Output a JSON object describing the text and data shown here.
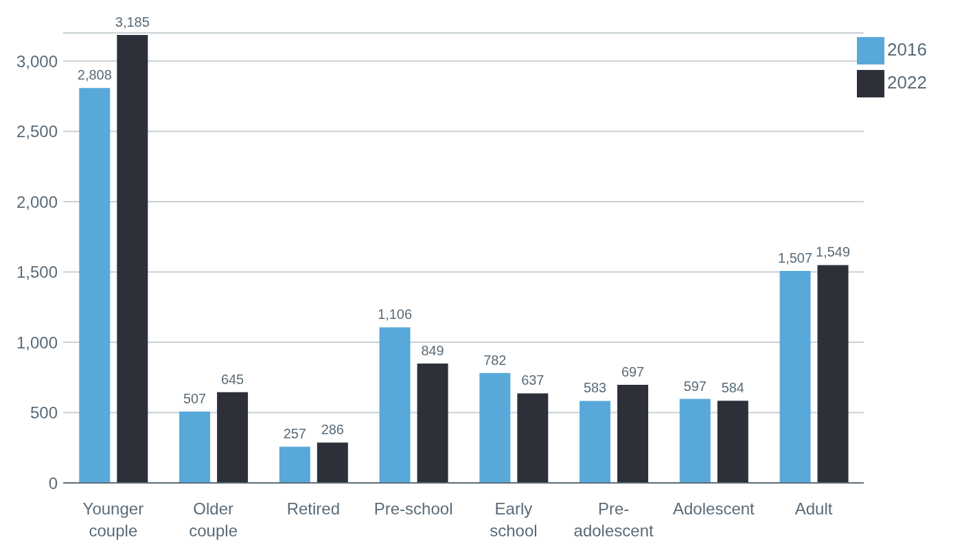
{
  "chart_data": {
    "type": "bar",
    "categories": [
      "Younger couple",
      "Older couple",
      "Retired",
      "Pre-school",
      "Early school",
      "Pre-adolescent",
      "Adolescent",
      "Adult"
    ],
    "series": [
      {
        "name": "2016",
        "color": "#58a9d9",
        "values": [
          2808,
          507,
          257,
          1106,
          782,
          583,
          597,
          1507
        ],
        "value_labels": [
          "2,808",
          "507",
          "257",
          "1,106",
          "782",
          "583",
          "597",
          "1,507"
        ]
      },
      {
        "name": "2022",
        "color": "#2d3038",
        "values": [
          3185,
          645,
          286,
          849,
          637,
          697,
          584,
          1549
        ],
        "value_labels": [
          "3,185",
          "645",
          "286",
          "849",
          "637",
          "697",
          "584",
          "1,549"
        ]
      }
    ],
    "ylim": [
      0,
      3200
    ],
    "yticks": [
      0,
      500,
      {
        "value": 1000,
        "label": "1,000"
      },
      {
        "value": 1500,
        "label": "1,500"
      },
      {
        "value": 2000,
        "label": "2,000"
      },
      {
        "value": 2500,
        "label": "2,500"
      },
      {
        "value": 3000,
        "label": "3,000"
      }
    ],
    "grid": "y",
    "legend": "top right"
  }
}
